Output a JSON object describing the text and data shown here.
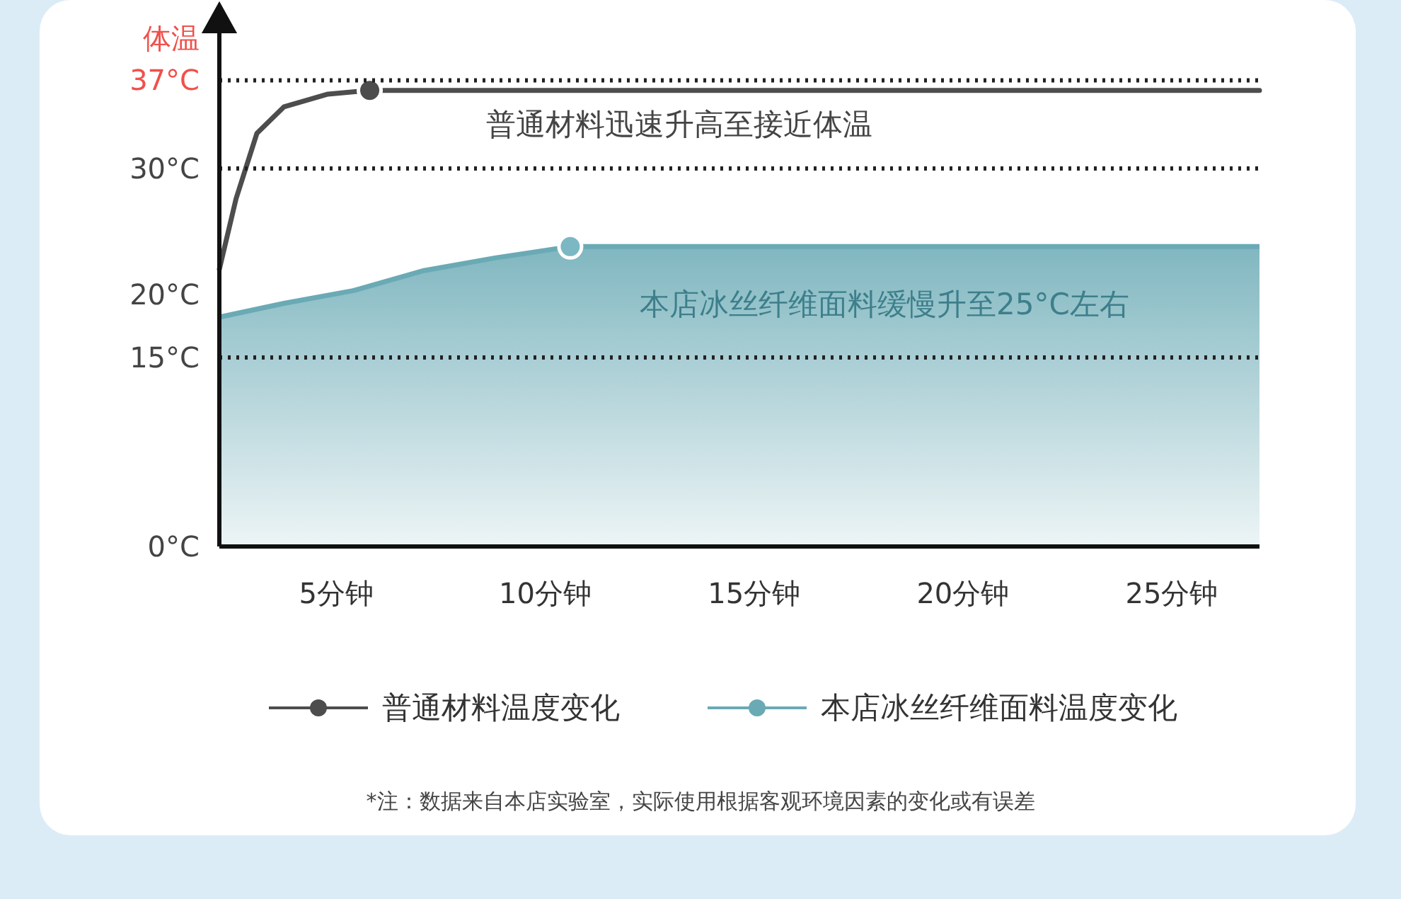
{
  "chart_data": {
    "type": "line",
    "ylabel": "体温",
    "xlim": [
      2.2,
      27.1
    ],
    "ylim": [
      0,
      40
    ],
    "xticks": [
      {
        "value": 5,
        "label": "5分钟"
      },
      {
        "value": 10,
        "label": "10分钟"
      },
      {
        "value": 15,
        "label": "15分钟"
      },
      {
        "value": 20,
        "label": "20分钟"
      },
      {
        "value": 25,
        "label": "25分钟"
      }
    ],
    "yticks": [
      {
        "value": 0,
        "label": "0°C"
      },
      {
        "value": 15,
        "label": "15°C"
      },
      {
        "value": 20,
        "label": "20°C"
      },
      {
        "value": 30,
        "label": "30°C"
      },
      {
        "value": 37,
        "label": "37°C"
      }
    ],
    "series": [
      {
        "name": "普通材料温度变化",
        "type": "line",
        "color": "#4d4d4d",
        "x": [
          2.2,
          2.6,
          3.1,
          3.75,
          4.8,
          5.8,
          27.1
        ],
        "values": [
          22,
          27.6,
          32.8,
          34.9,
          35.9,
          36.2,
          36.2
        ]
      },
      {
        "name": "本店冰丝纤维面料温度变化",
        "type": "area",
        "color": "#6aaab5",
        "x": [
          2.2,
          3.75,
          5.4,
          7.1,
          8.8,
          10.6,
          27.1
        ],
        "values": [
          18.2,
          19.3,
          20.3,
          21.9,
          22.9,
          23.8,
          23.8
        ]
      },
      {
        "type": "scatter",
        "color": "#4d4d4d",
        "x": [
          5.8
        ],
        "values": [
          36.2
        ]
      },
      {
        "type": "scatter",
        "color": "#7bb8c3",
        "x": [
          10.6
        ],
        "values": [
          23.8
        ]
      }
    ],
    "ref_lines": [
      {
        "axis": "y",
        "value": 37,
        "line_style": "dotted",
        "color": "#222222"
      },
      {
        "axis": "y",
        "value": 30,
        "line_style": "dotted",
        "color": "#222222"
      },
      {
        "axis": "y",
        "value": 15,
        "line_style": "dotted",
        "color": "#222222"
      }
    ],
    "annotations": [
      "普通材料迅速升高至接近体温",
      "本店冰丝纤维面料缓慢升至25°C左右",
      "*注：数据来自本店实验室，实际使用根据客观环境因素的变化或有误差"
    ],
    "legend": "bottom",
    "grid": false,
    "line_style": "solid"
  }
}
